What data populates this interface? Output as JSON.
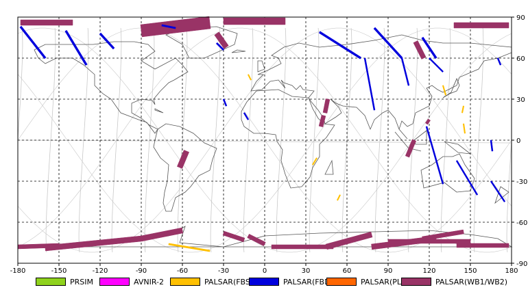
{
  "map": {
    "x_ticks": [
      "-180",
      "-150",
      "-120",
      "-90",
      "-60",
      "-30",
      "0",
      "30",
      "60",
      "90",
      "120",
      "150",
      "180"
    ],
    "y_ticks": [
      "90",
      "60",
      "30",
      "0",
      "-30",
      "-60",
      "-90"
    ],
    "lon_range": [
      -180,
      180
    ],
    "lat_range": [
      -90,
      90
    ],
    "grid": "dashed",
    "frame_color": "#000000",
    "coastline_color": "#555555",
    "orbit_color": "#c8c8c8"
  },
  "legend": [
    {
      "label": "PRSIM",
      "color": "#8fd21d"
    },
    {
      "label": "AVNIR-2",
      "color": "#ff00ff"
    },
    {
      "label": "PALSAR(FBS)",
      "color": "#ffc000"
    },
    {
      "label": "PALSAR(FBD)",
      "color": "#0000dd"
    },
    {
      "label": "PALSAR(PLR)",
      "color": "#ff6600"
    },
    {
      "label": "PALSAR(WB1/WB2)",
      "color": "#993366"
    }
  ]
}
